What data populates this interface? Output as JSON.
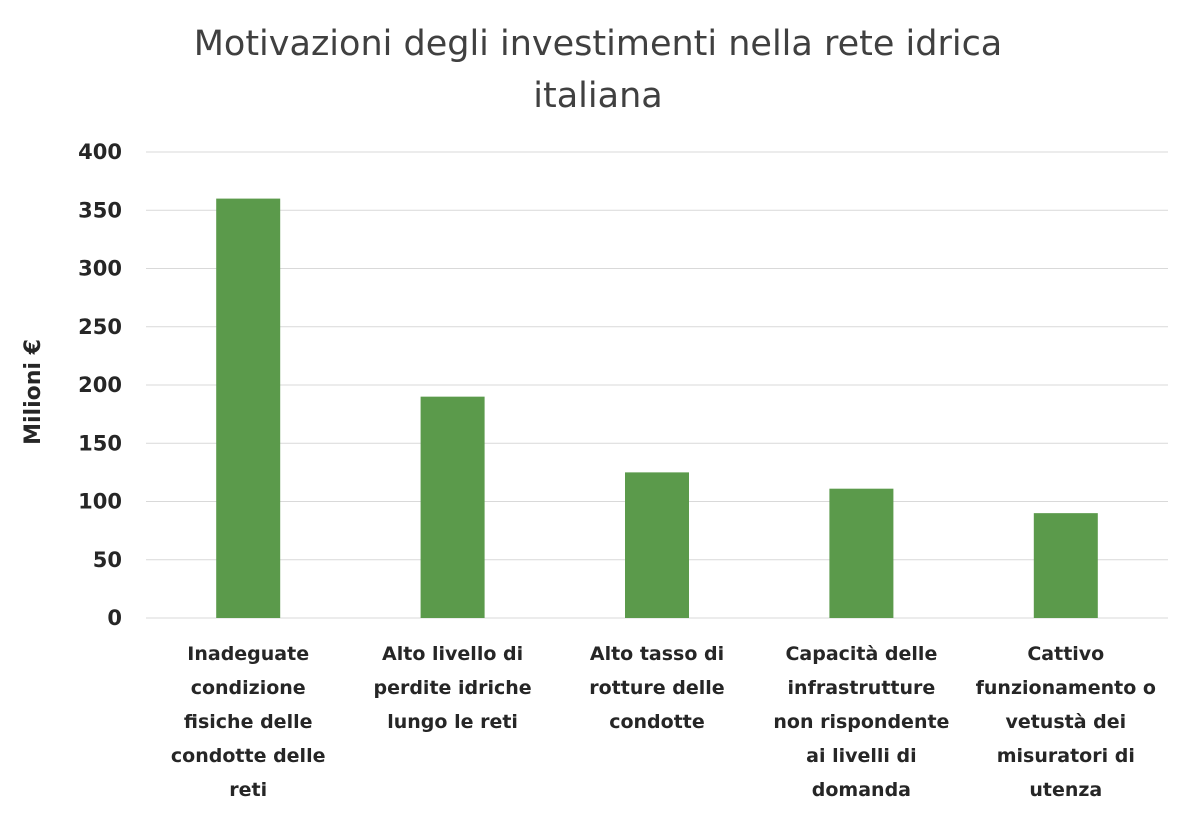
{
  "chart_data": {
    "type": "bar",
    "title_lines": [
      "Motivazioni degli investimenti nella rete idrica",
      "italiana"
    ],
    "ylabel": "Milioni €",
    "xlabel": "",
    "ylim": [
      0,
      400
    ],
    "yticks": [
      0,
      50,
      100,
      150,
      200,
      250,
      300,
      350,
      400
    ],
    "grid": true,
    "bar_color": "#5b9a4b",
    "categories": [
      [
        "Inadeguate",
        "condizione",
        "fisiche delle",
        "condotte delle",
        "reti"
      ],
      [
        "Alto livello di",
        "perdite idriche",
        "lungo le reti"
      ],
      [
        "Alto tasso di",
        "rotture delle",
        "condotte"
      ],
      [
        "Capacità delle",
        "infrastrutture",
        "non rispondente",
        "ai livelli di",
        "domanda"
      ],
      [
        "Cattivo",
        "funzionamento o",
        "vetustà dei",
        "misuratori di",
        "utenza"
      ]
    ],
    "values": [
      360,
      190,
      125,
      111,
      90
    ]
  }
}
